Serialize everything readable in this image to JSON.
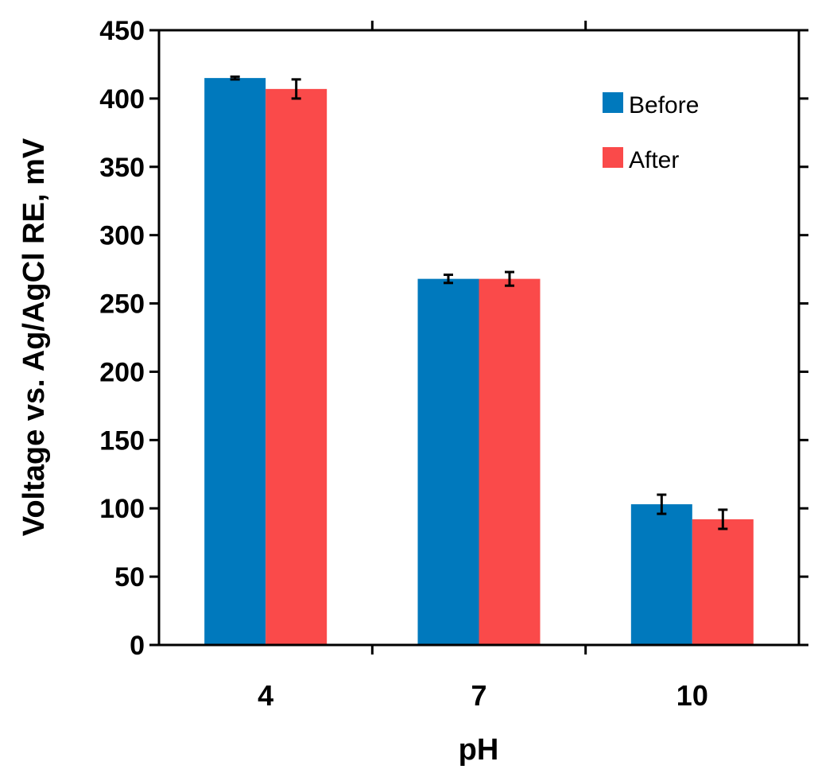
{
  "chart_data": {
    "type": "bar",
    "title": "",
    "xlabel": "pH",
    "ylabel": "Voltage vs. Ag/AgCl RE, mV",
    "categories": [
      "4",
      "7",
      "10"
    ],
    "ylim": [
      0,
      450
    ],
    "yticks": [
      "0",
      "50",
      "100",
      "150",
      "200",
      "250",
      "300",
      "350",
      "400",
      "450"
    ],
    "grid": false,
    "legend_position": "top-right",
    "series": [
      {
        "name": "Before",
        "color": "#0079BD",
        "values": [
          415,
          268,
          103
        ],
        "errors": [
          1,
          3,
          7
        ]
      },
      {
        "name": "After",
        "color": "#FA4A4A",
        "values": [
          407,
          268,
          92
        ],
        "errors": [
          7,
          5,
          7
        ]
      }
    ]
  }
}
